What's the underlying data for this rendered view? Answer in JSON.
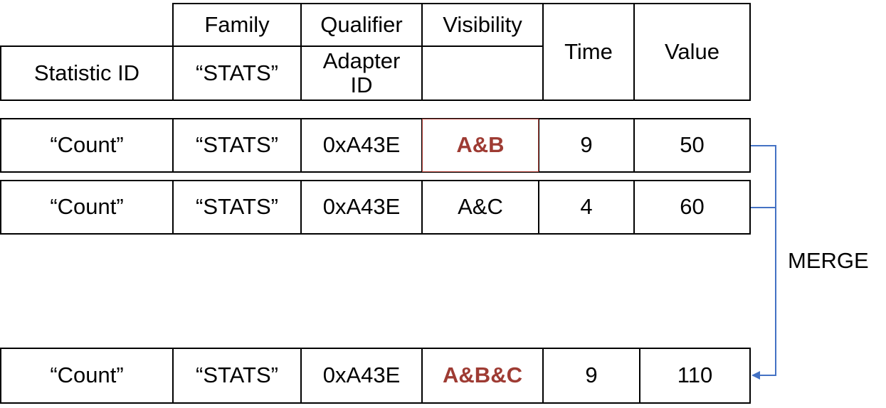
{
  "header": {
    "family": "Family",
    "qualifier": "Qualifier",
    "visibility": "Visibility",
    "statistic_id": "Statistic ID",
    "family_value": "“STATS”",
    "qualifier_value": "Adapter ID",
    "time": "Time",
    "value": "Value"
  },
  "rows": [
    {
      "statistic_id": "“Count”",
      "family": "“STATS”",
      "qualifier": "0xA43E",
      "visibility": "A&B",
      "time": "9",
      "value": "50"
    },
    {
      "statistic_id": "“Count”",
      "family": "“STATS”",
      "qualifier": "0xA43E",
      "visibility": "A&C",
      "time": "4",
      "value": "60"
    }
  ],
  "merge_label": "MERGE",
  "result": {
    "statistic_id": "“Count”",
    "family": "“STATS”",
    "qualifier": "0xA43E",
    "visibility": "A&B&C",
    "time": "9",
    "value": "110"
  },
  "colors": {
    "highlight": "#9e3b33",
    "connector": "#4472c4"
  }
}
